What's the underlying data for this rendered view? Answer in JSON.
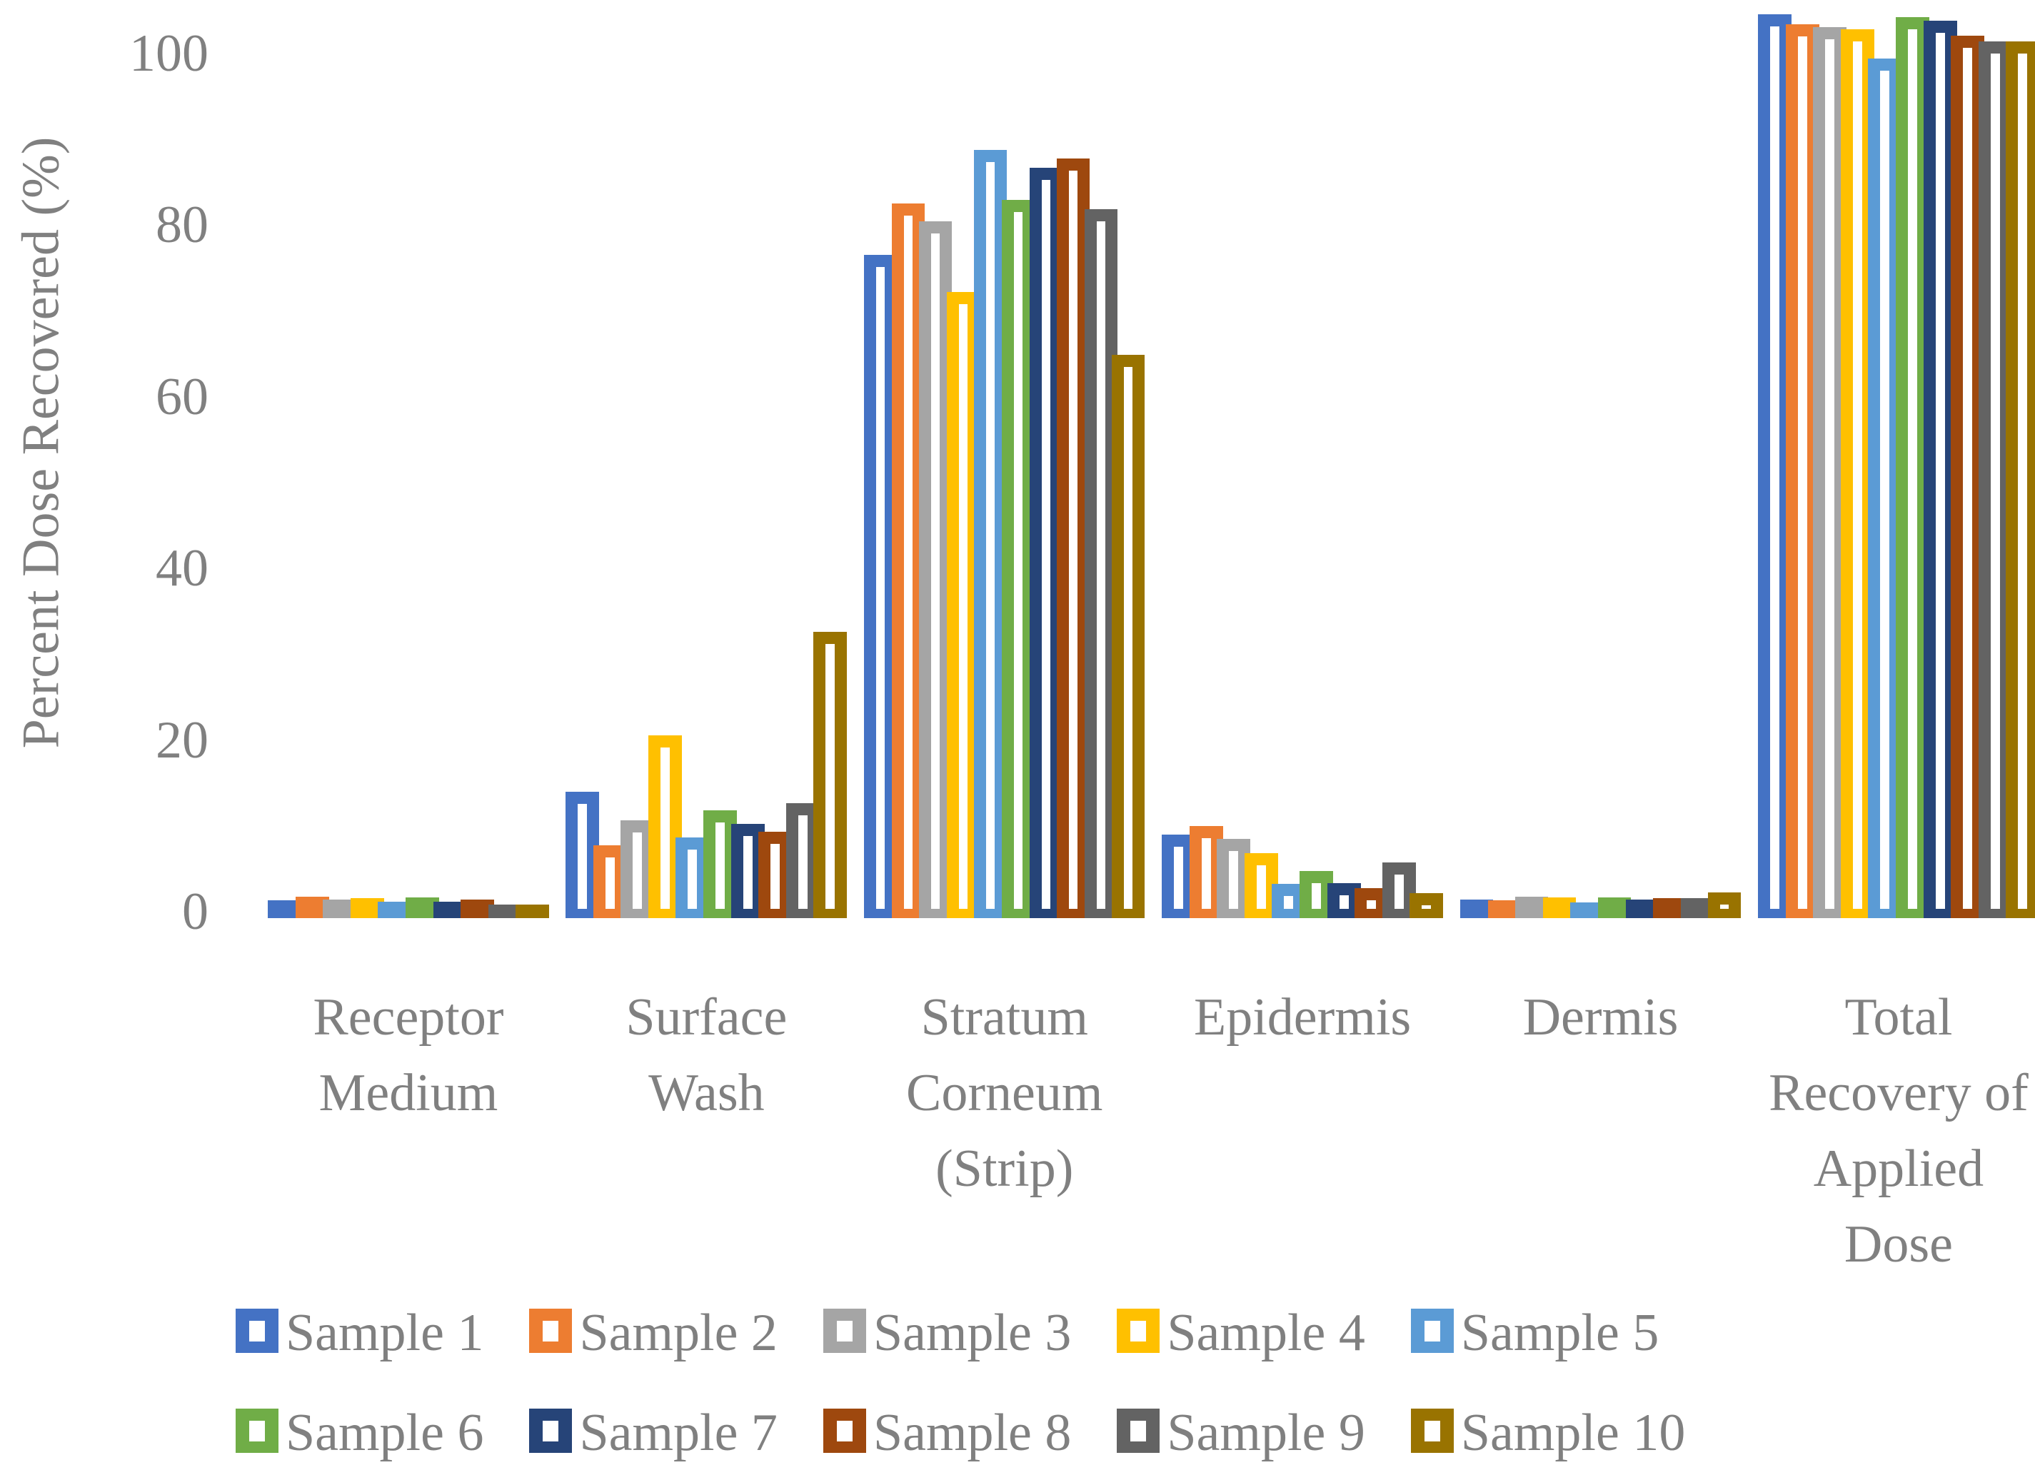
{
  "chart_data": {
    "type": "bar",
    "title": "",
    "ylabel": "Percent Dose Recovered (%)",
    "xlabel": "",
    "categories": [
      "Receptor Medium",
      "Surface Wash",
      "Stratum Corneum (Strip)",
      "Epidermis",
      "Dermis",
      "Total Recovery of Applied Dose"
    ],
    "category_label_lines": [
      [
        "Receptor",
        "Medium"
      ],
      [
        "Surface",
        "Wash"
      ],
      [
        "Stratum",
        "Corneum",
        "(Strip)"
      ],
      [
        "Epidermis"
      ],
      [
        "Dermis"
      ],
      [
        "Total",
        "Recovery of",
        "Applied",
        "Dose"
      ]
    ],
    "yticks": [
      0,
      20,
      40,
      60,
      80,
      100
    ],
    "ylim": [
      0,
      107
    ],
    "grid": false,
    "axis_lines": false,
    "bar_style": "hollow-outline",
    "legend_position": "bottom",
    "axis_text_color": "#808080",
    "series": [
      {
        "name": "Sample 1",
        "color": "#4472C4",
        "values": [
          2.1,
          14.7,
          77.3,
          9.7,
          2.2,
          105.3
        ]
      },
      {
        "name": "Sample 2",
        "color": "#ED7D31",
        "values": [
          2.5,
          8.5,
          83.3,
          10.7,
          2.1,
          104.2
        ]
      },
      {
        "name": "Sample 3",
        "color": "#A5A5A5",
        "values": [
          2.2,
          11.4,
          81.2,
          9.2,
          2.5,
          103.8
        ]
      },
      {
        "name": "Sample 4",
        "color": "#FFC000",
        "values": [
          2.3,
          21.3,
          73.0,
          7.6,
          2.4,
          103.6
        ]
      },
      {
        "name": "Sample 5",
        "color": "#5B9BD5",
        "values": [
          1.9,
          9.4,
          89.5,
          4.0,
          1.8,
          100.2
        ]
      },
      {
        "name": "Sample 6",
        "color": "#70AD47",
        "values": [
          2.4,
          12.6,
          83.7,
          5.5,
          2.4,
          105.0
        ]
      },
      {
        "name": "Sample 7",
        "color": "#264478",
        "values": [
          1.9,
          11.0,
          87.4,
          4.1,
          2.2,
          104.6
        ]
      },
      {
        "name": "Sample 8",
        "color": "#9E480E",
        "values": [
          2.2,
          10.1,
          88.5,
          3.5,
          2.3,
          102.8
        ]
      },
      {
        "name": "Sample 9",
        "color": "#636363",
        "values": [
          1.6,
          13.4,
          82.6,
          6.5,
          2.3,
          102.2
        ]
      },
      {
        "name": "Sample 10",
        "color": "#997300",
        "values": [
          1.6,
          33.4,
          65.6,
          2.9,
          3.0,
          102.2
        ]
      }
    ]
  }
}
